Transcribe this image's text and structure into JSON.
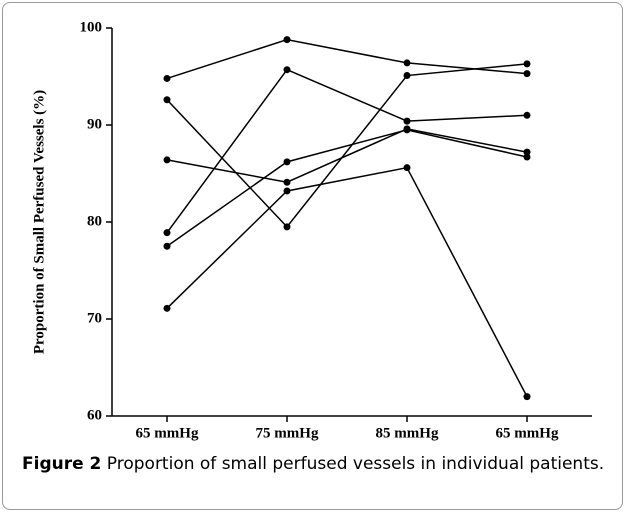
{
  "chart_data": {
    "type": "line",
    "ylabel": "Proportion of Small Perfused Vessels (%)",
    "categories": [
      "65 mmHg",
      "75 mmHg",
      "85 mmHg",
      "65 mmHg"
    ],
    "series": [
      {
        "color": "#000000",
        "values": [
          94.8,
          98.8,
          96.4,
          95.3
        ]
      },
      {
        "color": "#000000",
        "values": [
          92.6,
          79.5,
          95.1,
          96.3
        ]
      },
      {
        "color": "#000000",
        "values": [
          86.4,
          84.1,
          89.6,
          87.2
        ]
      },
      {
        "color": "#000000",
        "values": [
          78.9,
          95.7,
          90.4,
          91.0
        ]
      },
      {
        "color": "#000000",
        "values": [
          77.5,
          86.2,
          89.5,
          86.7
        ]
      },
      {
        "color": "#000000",
        "values": [
          71.1,
          83.2,
          85.6,
          62.0
        ]
      }
    ],
    "ylim": [
      60,
      100
    ],
    "yticks": [
      60,
      70,
      80,
      90,
      100
    ]
  },
  "caption": {
    "label": "Figure 2",
    "text": "Proportion of small perfused vessels in individual patients."
  }
}
